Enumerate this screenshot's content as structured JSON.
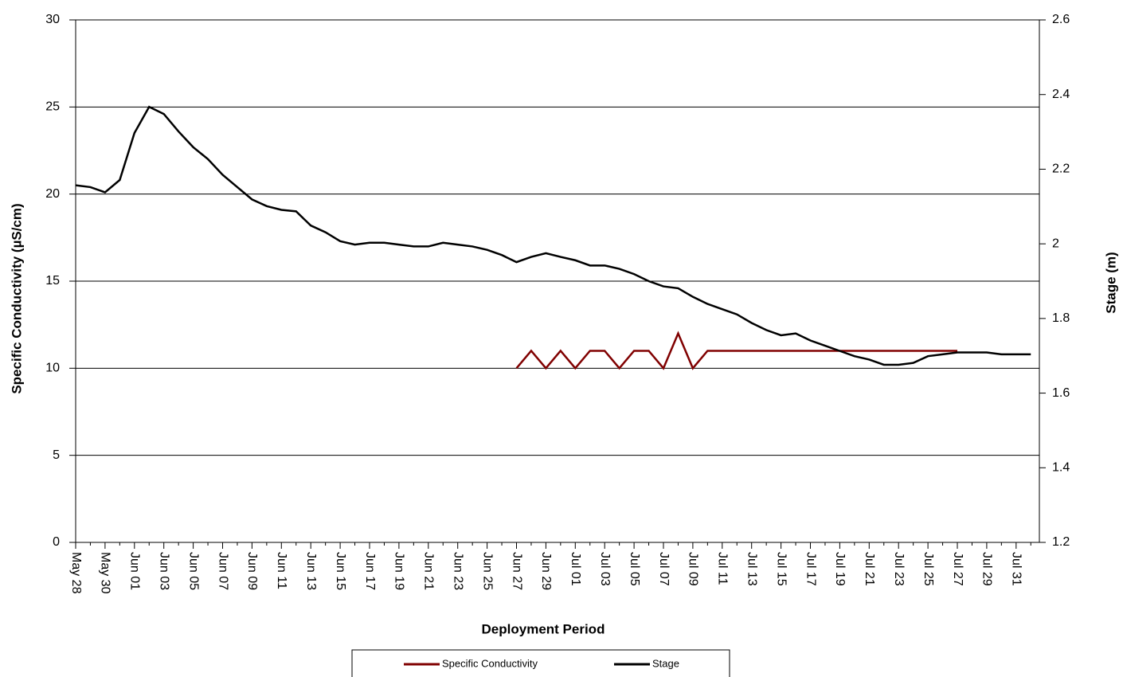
{
  "chart_data": {
    "type": "line",
    "x_label": "Deployment Period",
    "y_label": "Specific Conductivity (µS/cm)",
    "y2_label": "Stage (m)",
    "categories": [
      "May 28",
      null,
      "May 30",
      null,
      "Jun 01",
      null,
      "Jun 03",
      null,
      "Jun 05",
      null,
      "Jun 07",
      null,
      "Jun 09",
      null,
      "Jun 11",
      null,
      "Jun 13",
      null,
      "Jun 15",
      null,
      "Jun 17",
      null,
      "Jun 19",
      null,
      "Jun 21",
      null,
      "Jun 23",
      null,
      "Jun 25",
      null,
      "Jun 27",
      null,
      "Jun 29",
      null,
      "Jul 01",
      null,
      "Jul 03",
      null,
      "Jul 05",
      null,
      "Jul 07",
      null,
      "Jul 09",
      null,
      "Jul 11",
      null,
      "Jul 13",
      null,
      "Jul 15",
      null,
      "Jul 17",
      null,
      "Jul 19",
      null,
      "Jul 21",
      null,
      "Jul 23",
      null,
      "Jul 25",
      null,
      "Jul 27",
      null,
      "Jul 29",
      null,
      "Jul 31",
      null
    ],
    "series": [
      {
        "name": "Specific Conductivity",
        "color": "#800000",
        "axis": "y",
        "values": [
          null,
          null,
          null,
          null,
          null,
          null,
          null,
          null,
          null,
          null,
          null,
          null,
          null,
          null,
          null,
          null,
          null,
          null,
          null,
          null,
          null,
          null,
          null,
          null,
          null,
          null,
          null,
          null,
          null,
          null,
          10,
          11,
          10,
          11,
          10,
          11,
          11,
          10,
          11,
          11,
          10,
          12,
          10,
          11,
          11,
          11,
          11,
          11,
          11,
          11,
          11,
          11,
          11,
          11,
          11,
          11,
          11,
          11,
          11,
          11,
          11,
          null,
          null,
          null,
          null,
          null
        ]
      },
      {
        "name": "Stage",
        "color": "#000000",
        "axis": "y2",
        "values": [
          2.157,
          2.152,
          2.138,
          2.171,
          2.297,
          2.367,
          2.348,
          2.301,
          2.259,
          2.227,
          2.185,
          2.152,
          2.119,
          2.101,
          2.091,
          2.087,
          2.049,
          2.031,
          2.007,
          1.998,
          2.003,
          2.003,
          1.998,
          1.993,
          1.993,
          2.003,
          1.998,
          1.993,
          1.984,
          1.97,
          1.951,
          1.965,
          1.975,
          1.965,
          1.956,
          1.942,
          1.942,
          1.933,
          1.919,
          1.9,
          1.886,
          1.881,
          1.858,
          1.839,
          1.825,
          1.811,
          1.788,
          1.769,
          1.755,
          1.76,
          1.741,
          1.727,
          1.713,
          1.699,
          1.69,
          1.676,
          1.676,
          1.681,
          1.699,
          1.704,
          1.709,
          1.709,
          1.709,
          1.704,
          1.704,
          1.704
        ]
      }
    ],
    "ylim": [
      0,
      30
    ],
    "yticks": [
      0,
      5,
      10,
      15,
      20,
      25,
      30
    ],
    "y2lim": [
      1.2,
      2.6
    ],
    "y2ticks": [
      1.2,
      1.4,
      1.6,
      1.8,
      2,
      2.2,
      2.4,
      2.6
    ],
    "grid": true
  }
}
